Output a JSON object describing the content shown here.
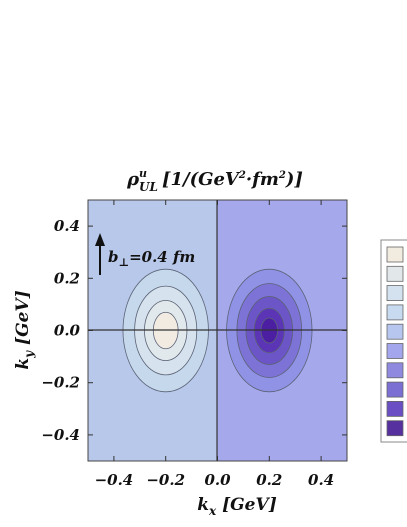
{
  "chart_data": {
    "type": "heatmap",
    "title": {
      "rho": "ρ",
      "sup": "u",
      "sub": "UL",
      "unit_open": "[1/(GeV",
      "unit_sq1": "2",
      "unit_mid": "·fm",
      "unit_sq2": "2",
      "unit_close": ")]"
    },
    "xlabel": {
      "main": "k",
      "sub": "x",
      "unit": " [GeV]"
    },
    "ylabel": {
      "main": "k",
      "sub": "y",
      "unit": " [GeV]"
    },
    "xlim": [
      -0.5,
      0.5
    ],
    "ylim": [
      -0.5,
      0.5
    ],
    "x_ticks": [
      "−0.4",
      "−0.2",
      "0.0",
      "0.2",
      "0.4"
    ],
    "x_tick_values": [
      -0.4,
      -0.2,
      0.0,
      0.2,
      0.4
    ],
    "y_ticks": [
      "0.4",
      "0.2",
      "0.0",
      "−0.2",
      "−0.4"
    ],
    "y_tick_values": [
      0.4,
      0.2,
      0.0,
      -0.2,
      -0.4
    ],
    "annotation": {
      "main": "b",
      "sub": "⊥",
      "rest": "=0.4  fm"
    },
    "positive_lobe": {
      "center": [
        -0.2,
        0.0
      ],
      "contours": [
        {
          "rx": 0.165,
          "ry": 0.235,
          "color": "#c5d8ec"
        },
        {
          "rx": 0.12,
          "ry": 0.17,
          "color": "#d6e3ee"
        },
        {
          "rx": 0.082,
          "ry": 0.115,
          "color": "#e2e9ed"
        },
        {
          "rx": 0.048,
          "ry": 0.07,
          "color": "#f1ebe2"
        }
      ]
    },
    "negative_lobe": {
      "center": [
        0.2,
        0.0
      ],
      "contours": [
        {
          "rx": 0.165,
          "ry": 0.235,
          "color": "#9092e6"
        },
        {
          "rx": 0.125,
          "ry": 0.18,
          "color": "#7d73d6"
        },
        {
          "rx": 0.09,
          "ry": 0.13,
          "color": "#6c55c6"
        },
        {
          "rx": 0.058,
          "ry": 0.085,
          "color": "#5b35b5"
        },
        {
          "rx": 0.032,
          "ry": 0.048,
          "color": "#4c1fa2"
        }
      ]
    },
    "background_left": "#b8c8ea",
    "background_right": "#a6a8ec",
    "legend_colors": [
      "#f2ebe0",
      "#e2e7ea",
      "#d4e1ee",
      "#c8daf0",
      "#b6c6ee",
      "#a3a6ec",
      "#8f8ae0",
      "#7b6fd4",
      "#6a4fc4",
      "#56309f"
    ]
  }
}
